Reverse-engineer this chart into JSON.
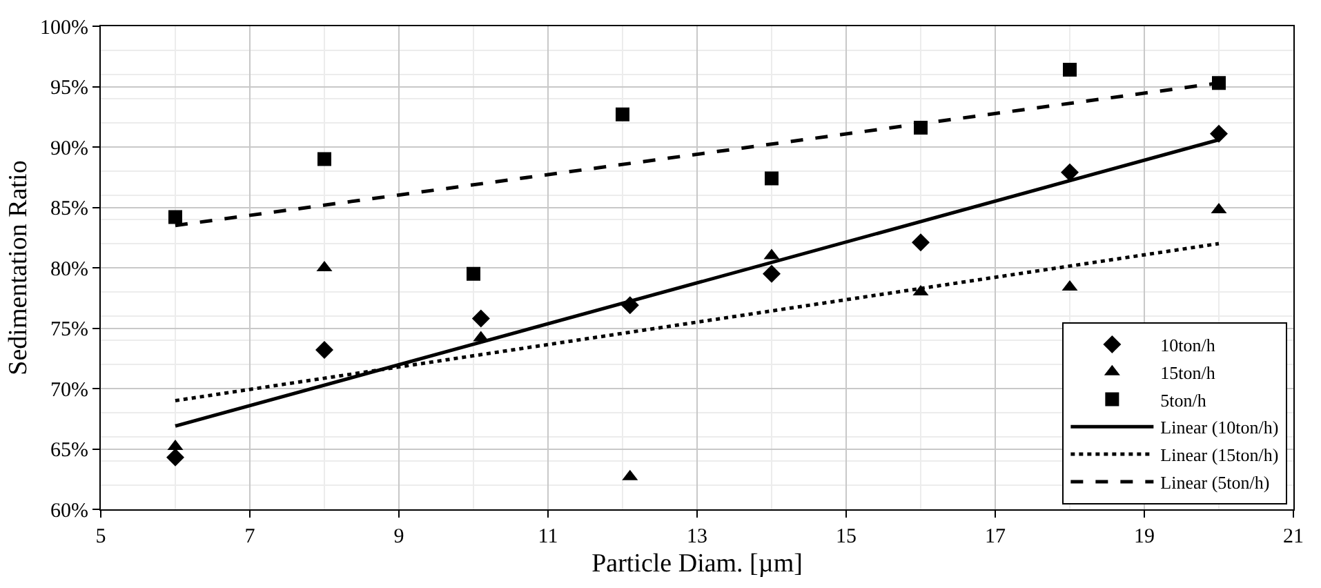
{
  "chart_data": {
    "type": "scatter",
    "xlabel": "Particle Diam. [µm]",
    "ylabel": "Sedimentation Ratio",
    "xlim": [
      5,
      21
    ],
    "xticks": [
      5,
      7,
      9,
      11,
      13,
      15,
      17,
      19,
      21
    ],
    "ylim": [
      60,
      100
    ],
    "yticks": [
      {
        "value": 60,
        "label": "60%"
      },
      {
        "value": 65,
        "label": "65%"
      },
      {
        "value": 70,
        "label": "70%"
      },
      {
        "value": 75,
        "label": "75%"
      },
      {
        "value": 80,
        "label": "80%"
      },
      {
        "value": 85,
        "label": "85%"
      },
      {
        "value": 90,
        "label": "90%"
      },
      {
        "value": 95,
        "label": "95%"
      },
      {
        "value": 100,
        "label": "100%"
      }
    ],
    "grid": true,
    "legend": "bottom right",
    "series": [
      {
        "name": "10ton/h",
        "marker": "diamond",
        "color": "#000000",
        "x": [
          6,
          8,
          10.1,
          12.1,
          14,
          16,
          18,
          20
        ],
        "values": [
          64.3,
          73.2,
          75.8,
          76.9,
          79.5,
          82.1,
          87.9,
          91.1
        ]
      },
      {
        "name": "15ton/h",
        "marker": "triangle",
        "color": "#000000",
        "x": [
          6,
          8,
          10.1,
          12.1,
          14,
          16,
          18,
          20
        ],
        "values": [
          65.2,
          80.0,
          74.2,
          62.7,
          81.0,
          78.0,
          78.4,
          84.8
        ]
      },
      {
        "name": "5ton/h",
        "marker": "square",
        "color": "#000000",
        "x": [
          6,
          8,
          10,
          12,
          14,
          16,
          18,
          20
        ],
        "values": [
          84.2,
          89.0,
          79.5,
          92.7,
          87.4,
          91.6,
          96.4,
          95.3
        ]
      },
      {
        "name": "Linear (10ton/h)",
        "type": "line",
        "line_style": "solid",
        "color": "#000000",
        "x": [
          6,
          20
        ],
        "values": [
          66.9,
          90.6
        ]
      },
      {
        "name": "Linear (15ton/h)",
        "type": "line",
        "line_style": "dotted",
        "color": "#000000",
        "x": [
          6,
          20
        ],
        "values": [
          69.0,
          82.0
        ]
      },
      {
        "name": "Linear (5ton/h)",
        "type": "line",
        "line_style": "dashed",
        "color": "#000000",
        "x": [
          6,
          20
        ],
        "values": [
          83.5,
          95.3
        ]
      }
    ]
  }
}
